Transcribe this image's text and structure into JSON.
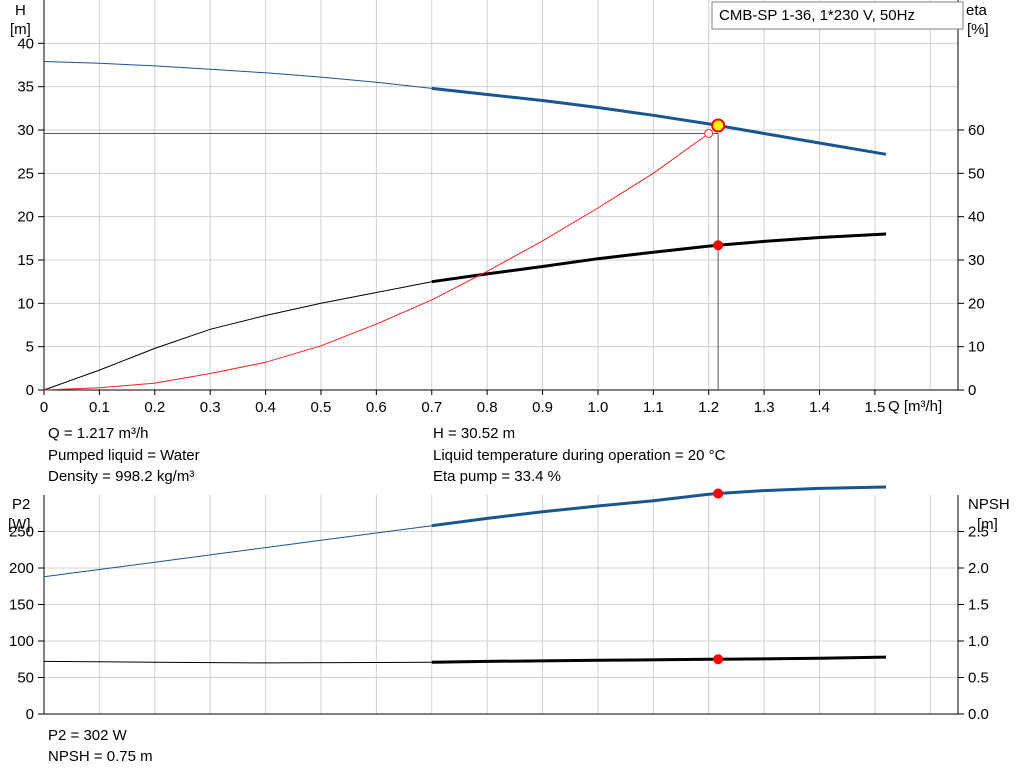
{
  "product": "CMB-SP 1-36, 1*230 V, 50Hz",
  "colors": {
    "blue": "#1a5590",
    "black": "#000000",
    "red_eta": "#ff2020",
    "op_point": "#ff0000",
    "op_point_h": "#ffff00",
    "grid": "#d0d0d0"
  },
  "info_top": {
    "q": "Q = 1.217 m³/h",
    "liquid": "Pumped liquid = Water",
    "density": "Density = 998.2 kg/m³",
    "h": "H = 30.52 m",
    "temp": "Liquid temperature during operation = 20 °C",
    "eta": "Eta pump = 33.4 %"
  },
  "info_bottom": {
    "p2": "P2 = 302 W",
    "npsh": "NPSH = 0.75 m"
  },
  "chart_data": [
    {
      "type": "line",
      "title": "CMB-SP 1-36, 1*230 V, 50Hz",
      "xlabel": "Q [m³/h]",
      "ylabel_left": [
        "H",
        "[m]"
      ],
      "ylabel_right": [
        "eta",
        "[%]"
      ],
      "xlim": [
        0,
        1.65
      ],
      "ylim_left": [
        0,
        45
      ],
      "ylim_right": [
        0,
        90
      ],
      "xticks": [
        "0",
        "0.1",
        "0.2",
        "0.3",
        "0.4",
        "0.5",
        "0.6",
        "0.7",
        "0.8",
        "0.9",
        "1.0",
        "1.1",
        "1.2",
        "1.3",
        "1.4",
        "1.5"
      ],
      "yticks_left": [
        "0",
        "5",
        "10",
        "15",
        "20",
        "25",
        "30",
        "35",
        "40"
      ],
      "yticks_right": [
        "0",
        "10",
        "20",
        "30",
        "40",
        "50",
        "60"
      ],
      "grid": true,
      "series": [
        {
          "axis": "left",
          "color": "blue",
          "x": [
            0,
            0.1,
            0.2,
            0.3,
            0.4,
            0.5,
            0.6,
            0.7,
            0.8,
            0.9,
            1.0,
            1.1,
            1.2,
            1.217,
            1.3,
            1.4,
            1.52
          ],
          "values": [
            37.9,
            37.7,
            37.4,
            37.0,
            36.6,
            36.1,
            35.5,
            34.8,
            34.1,
            33.4,
            32.6,
            31.7,
            30.7,
            30.52,
            29.6,
            28.5,
            27.2
          ],
          "thick_from": 0.7
        },
        {
          "axis": "right",
          "color": "black",
          "x": [
            0,
            0.1,
            0.2,
            0.3,
            0.4,
            0.5,
            0.6,
            0.7,
            0.8,
            0.9,
            1.0,
            1.1,
            1.2,
            1.217,
            1.3,
            1.4,
            1.52
          ],
          "values": [
            0,
            4.6,
            9.6,
            14.0,
            17.2,
            20.0,
            22.5,
            25.0,
            26.8,
            28.5,
            30.3,
            31.8,
            33.2,
            33.4,
            34.3,
            35.2,
            36.0
          ],
          "thick_from": 0.7
        },
        {
          "axis": "left",
          "color": "red_eta",
          "x": [
            0,
            0.1,
            0.2,
            0.3,
            0.4,
            0.5,
            0.6,
            0.7,
            0.8,
            0.9,
            1.0,
            1.1,
            1.2
          ],
          "values": [
            0,
            0.25,
            0.8,
            1.9,
            3.2,
            5.1,
            7.6,
            10.4,
            13.7,
            17.2,
            21.0,
            25.0,
            29.6
          ],
          "thick_from": null
        }
      ],
      "op_points": [
        {
          "axis": "left",
          "x": 1.217,
          "y": 30.52,
          "color": "op_point_h"
        },
        {
          "axis": "right",
          "x": 1.217,
          "y": 33.4,
          "color": "op_point"
        }
      ],
      "op_marker_eta": {
        "x": 1.2,
        "y": 29.6
      },
      "guide": {
        "x": 1.217,
        "y": 29.6
      }
    },
    {
      "type": "line",
      "ylabel_left": [
        "P2",
        "[W]"
      ],
      "ylabel_right": [
        "NPSH",
        "[m]"
      ],
      "xlim": [
        0,
        1.65
      ],
      "ylim_left": [
        0,
        300
      ],
      "ylim_right": [
        0,
        3.0
      ],
      "yticks_left": [
        "0",
        "50",
        "100",
        "150",
        "200",
        "250"
      ],
      "yticks_right": [
        "0.0",
        "0.5",
        "1.0",
        "1.5",
        "2.0",
        "2.5"
      ],
      "grid": true,
      "series": [
        {
          "axis": "left",
          "color": "blue",
          "x": [
            0,
            0.1,
            0.2,
            0.3,
            0.4,
            0.5,
            0.6,
            0.7,
            0.8,
            0.9,
            1.0,
            1.1,
            1.2,
            1.217,
            1.3,
            1.4,
            1.52
          ],
          "values": [
            188,
            198,
            208,
            218,
            228,
            238,
            248,
            258,
            268,
            277,
            285,
            292,
            301,
            302,
            306,
            309,
            311
          ],
          "thick_from": 0.7
        },
        {
          "axis": "right",
          "color": "black",
          "x": [
            0,
            0.2,
            0.4,
            0.6,
            0.7,
            0.8,
            1.0,
            1.2,
            1.217,
            1.4,
            1.52
          ],
          "values": [
            0.72,
            0.71,
            0.7,
            0.705,
            0.71,
            0.72,
            0.735,
            0.75,
            0.75,
            0.765,
            0.78
          ],
          "thick_from": 0.7
        }
      ],
      "op_points": [
        {
          "axis": "left",
          "x": 1.217,
          "y": 302,
          "color": "op_point"
        },
        {
          "axis": "right",
          "x": 1.217,
          "y": 0.75,
          "color": "op_point"
        }
      ]
    }
  ]
}
